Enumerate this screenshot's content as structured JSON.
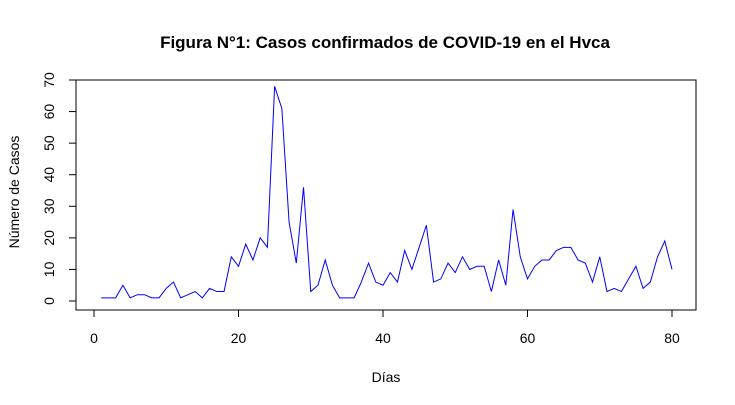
{
  "chart_data": {
    "type": "line",
    "title": "Figura N°1: Casos confirmados de COVID-19 en el Hvca",
    "xlabel": "Días",
    "ylabel": "Número de Casos",
    "xlim": [
      0,
      82
    ],
    "ylim": [
      0,
      70
    ],
    "x_ticks": [
      "0",
      "20",
      "40",
      "60",
      "80"
    ],
    "y_ticks": [
      "0",
      "10",
      "20",
      "30",
      "40",
      "50",
      "60",
      "70"
    ],
    "grid": false,
    "line_color": "#0000ff",
    "x": [
      1,
      2,
      3,
      4,
      5,
      6,
      7,
      8,
      9,
      10,
      11,
      12,
      13,
      14,
      15,
      16,
      17,
      18,
      19,
      20,
      21,
      22,
      23,
      24,
      25,
      26,
      27,
      28,
      29,
      30,
      31,
      32,
      33,
      34,
      35,
      36,
      37,
      38,
      39,
      40,
      41,
      42,
      43,
      44,
      45,
      46,
      47,
      48,
      49,
      50,
      51,
      52,
      53,
      54,
      55,
      56,
      57,
      58,
      59,
      60,
      61,
      62,
      63,
      64,
      65,
      66,
      67,
      68,
      69,
      70,
      71,
      72,
      73,
      74,
      75,
      76,
      77,
      78,
      79,
      80
    ],
    "series": [
      {
        "values": [
          1,
          1,
          1,
          5,
          1,
          2,
          2,
          1,
          1,
          4,
          6,
          1,
          2,
          3,
          1,
          4,
          3,
          3,
          14,
          11,
          18,
          13,
          20,
          17,
          68,
          61,
          25,
          12,
          36,
          3,
          5,
          13,
          5,
          1,
          1,
          1,
          6,
          12,
          6,
          5,
          9,
          6,
          16,
          10,
          17,
          24,
          6,
          7,
          12,
          9,
          14,
          10,
          11,
          11,
          3,
          13,
          5,
          29,
          14,
          7,
          11,
          13,
          13,
          16,
          17,
          17,
          13,
          12,
          6,
          14,
          3,
          4,
          3,
          7,
          11,
          4,
          6,
          14,
          19,
          10
        ]
      }
    ]
  }
}
